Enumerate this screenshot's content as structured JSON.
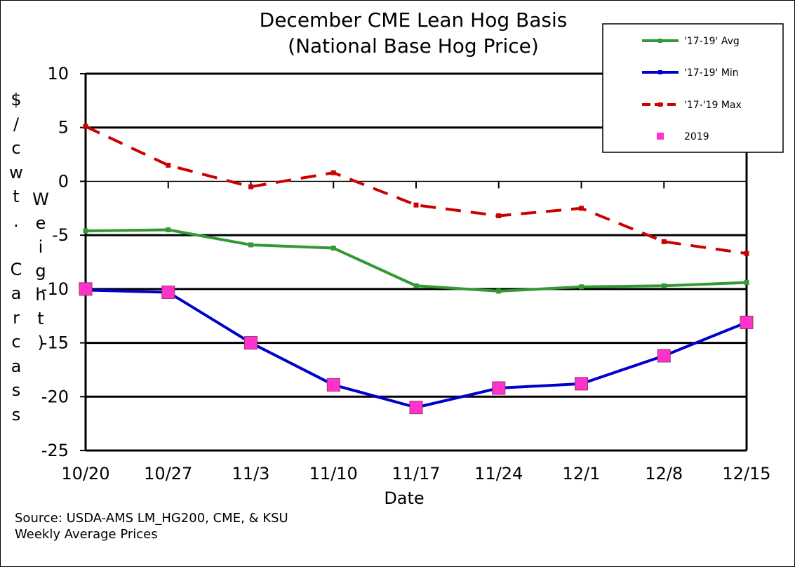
{
  "chart_data": {
    "type": "line",
    "title": "December CME Lean Hog Basis",
    "subtitle": "(National Base Hog Price)",
    "xlabel": "Date",
    "ylabel_outer": "$/cwt. Carcass",
    "ylabel_inner": "Weight)",
    "categories": [
      "10/20",
      "10/27",
      "11/3",
      "11/10",
      "11/17",
      "11/24",
      "12/1",
      "12/8",
      "12/15"
    ],
    "yticks": [
      "10",
      "5",
      "0",
      "-5",
      "-10",
      "-15",
      "-20",
      "-25"
    ],
    "ylim": [
      -25,
      10
    ],
    "grid": "horizontal",
    "legend_position": "top-right",
    "series": [
      {
        "name": "'17-19' Avg",
        "style": "solid",
        "color": "#339933",
        "values": [
          -4.6,
          -4.5,
          -5.9,
          -6.2,
          -9.7,
          -10.2,
          -9.8,
          -9.7,
          -9.4
        ]
      },
      {
        "name": "'17-19' Min",
        "style": "solid",
        "color": "#0000cc",
        "values": [
          -10.1,
          -10.3,
          -15.0,
          -18.9,
          -21.0,
          -19.2,
          -18.8,
          -16.2,
          -13.1
        ]
      },
      {
        "name": "'17-'19 Max",
        "style": "dashed",
        "color": "#cc0000",
        "values": [
          5.1,
          1.5,
          -0.5,
          0.8,
          -2.2,
          -3.2,
          -2.5,
          -5.6,
          -6.7
        ]
      },
      {
        "name": "2019",
        "style": "markers",
        "color": "#ff33cc",
        "values": [
          -10.0,
          -10.3,
          -15.0,
          -18.9,
          -21.0,
          -19.2,
          -18.8,
          -16.2,
          -13.1
        ]
      }
    ]
  },
  "source": {
    "line1": "Source:  USDA-AMS LM_HG200, CME, & KSU",
    "line2": "Weekly Average Prices"
  }
}
